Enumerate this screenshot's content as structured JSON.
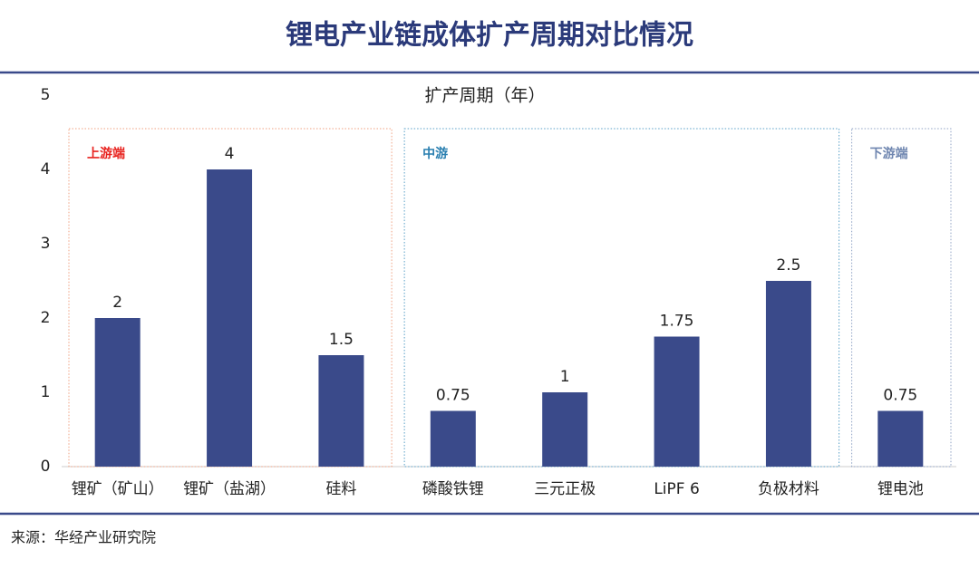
{
  "title": "锂电产业链成体扩产周期对比情况",
  "source": "来源：华经产业研究院",
  "chart_data": {
    "type": "bar",
    "title": "扩产周期（年）",
    "color": "#3a4a8a",
    "ylim": [
      0,
      5
    ],
    "yticks": [
      0,
      1,
      2,
      3,
      4,
      5
    ],
    "grid": false,
    "groups": [
      {
        "name": "上游端",
        "color": "#e8231f",
        "box_color": "#f0a080",
        "categories": [
          "锂矿（矿山）",
          "锂矿（盐湖）",
          "硅料"
        ],
        "values": [
          2,
          4,
          1.5
        ]
      },
      {
        "name": "中游",
        "color": "#2a7fb0",
        "box_color": "#5aa0c8",
        "categories": [
          "磷酸铁锂",
          "三元正极",
          "LiPF 6",
          "负极材料"
        ],
        "values": [
          0.75,
          1,
          1.75,
          2.5
        ]
      },
      {
        "name": "下游端",
        "color": "#6f86b0",
        "box_color": "#8fa2c4",
        "categories": [
          "锂电池"
        ],
        "values": [
          0.75
        ]
      }
    ]
  }
}
